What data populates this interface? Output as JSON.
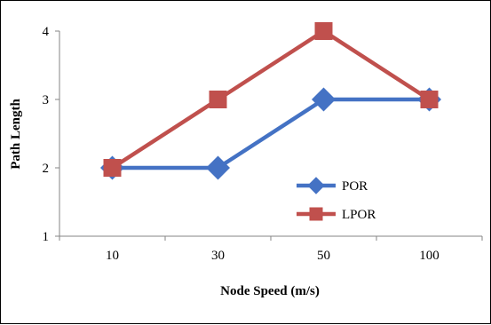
{
  "chart_data": {
    "type": "line",
    "categories": [
      "10",
      "30",
      "50",
      "100"
    ],
    "series": [
      {
        "name": "POR",
        "values": [
          2,
          2,
          3,
          3
        ],
        "color": "#4472C4",
        "marker": "diamond"
      },
      {
        "name": "LPOR",
        "values": [
          2,
          3,
          4,
          3
        ],
        "color": "#C0504D",
        "marker": "square"
      }
    ],
    "title": "",
    "xlabel": "Node Speed (m/s)",
    "ylabel": "Path Length",
    "ylim": [
      1,
      4
    ],
    "yticks": [
      "1",
      "2",
      "3",
      "4"
    ],
    "grid": false,
    "legend_position": "right"
  }
}
